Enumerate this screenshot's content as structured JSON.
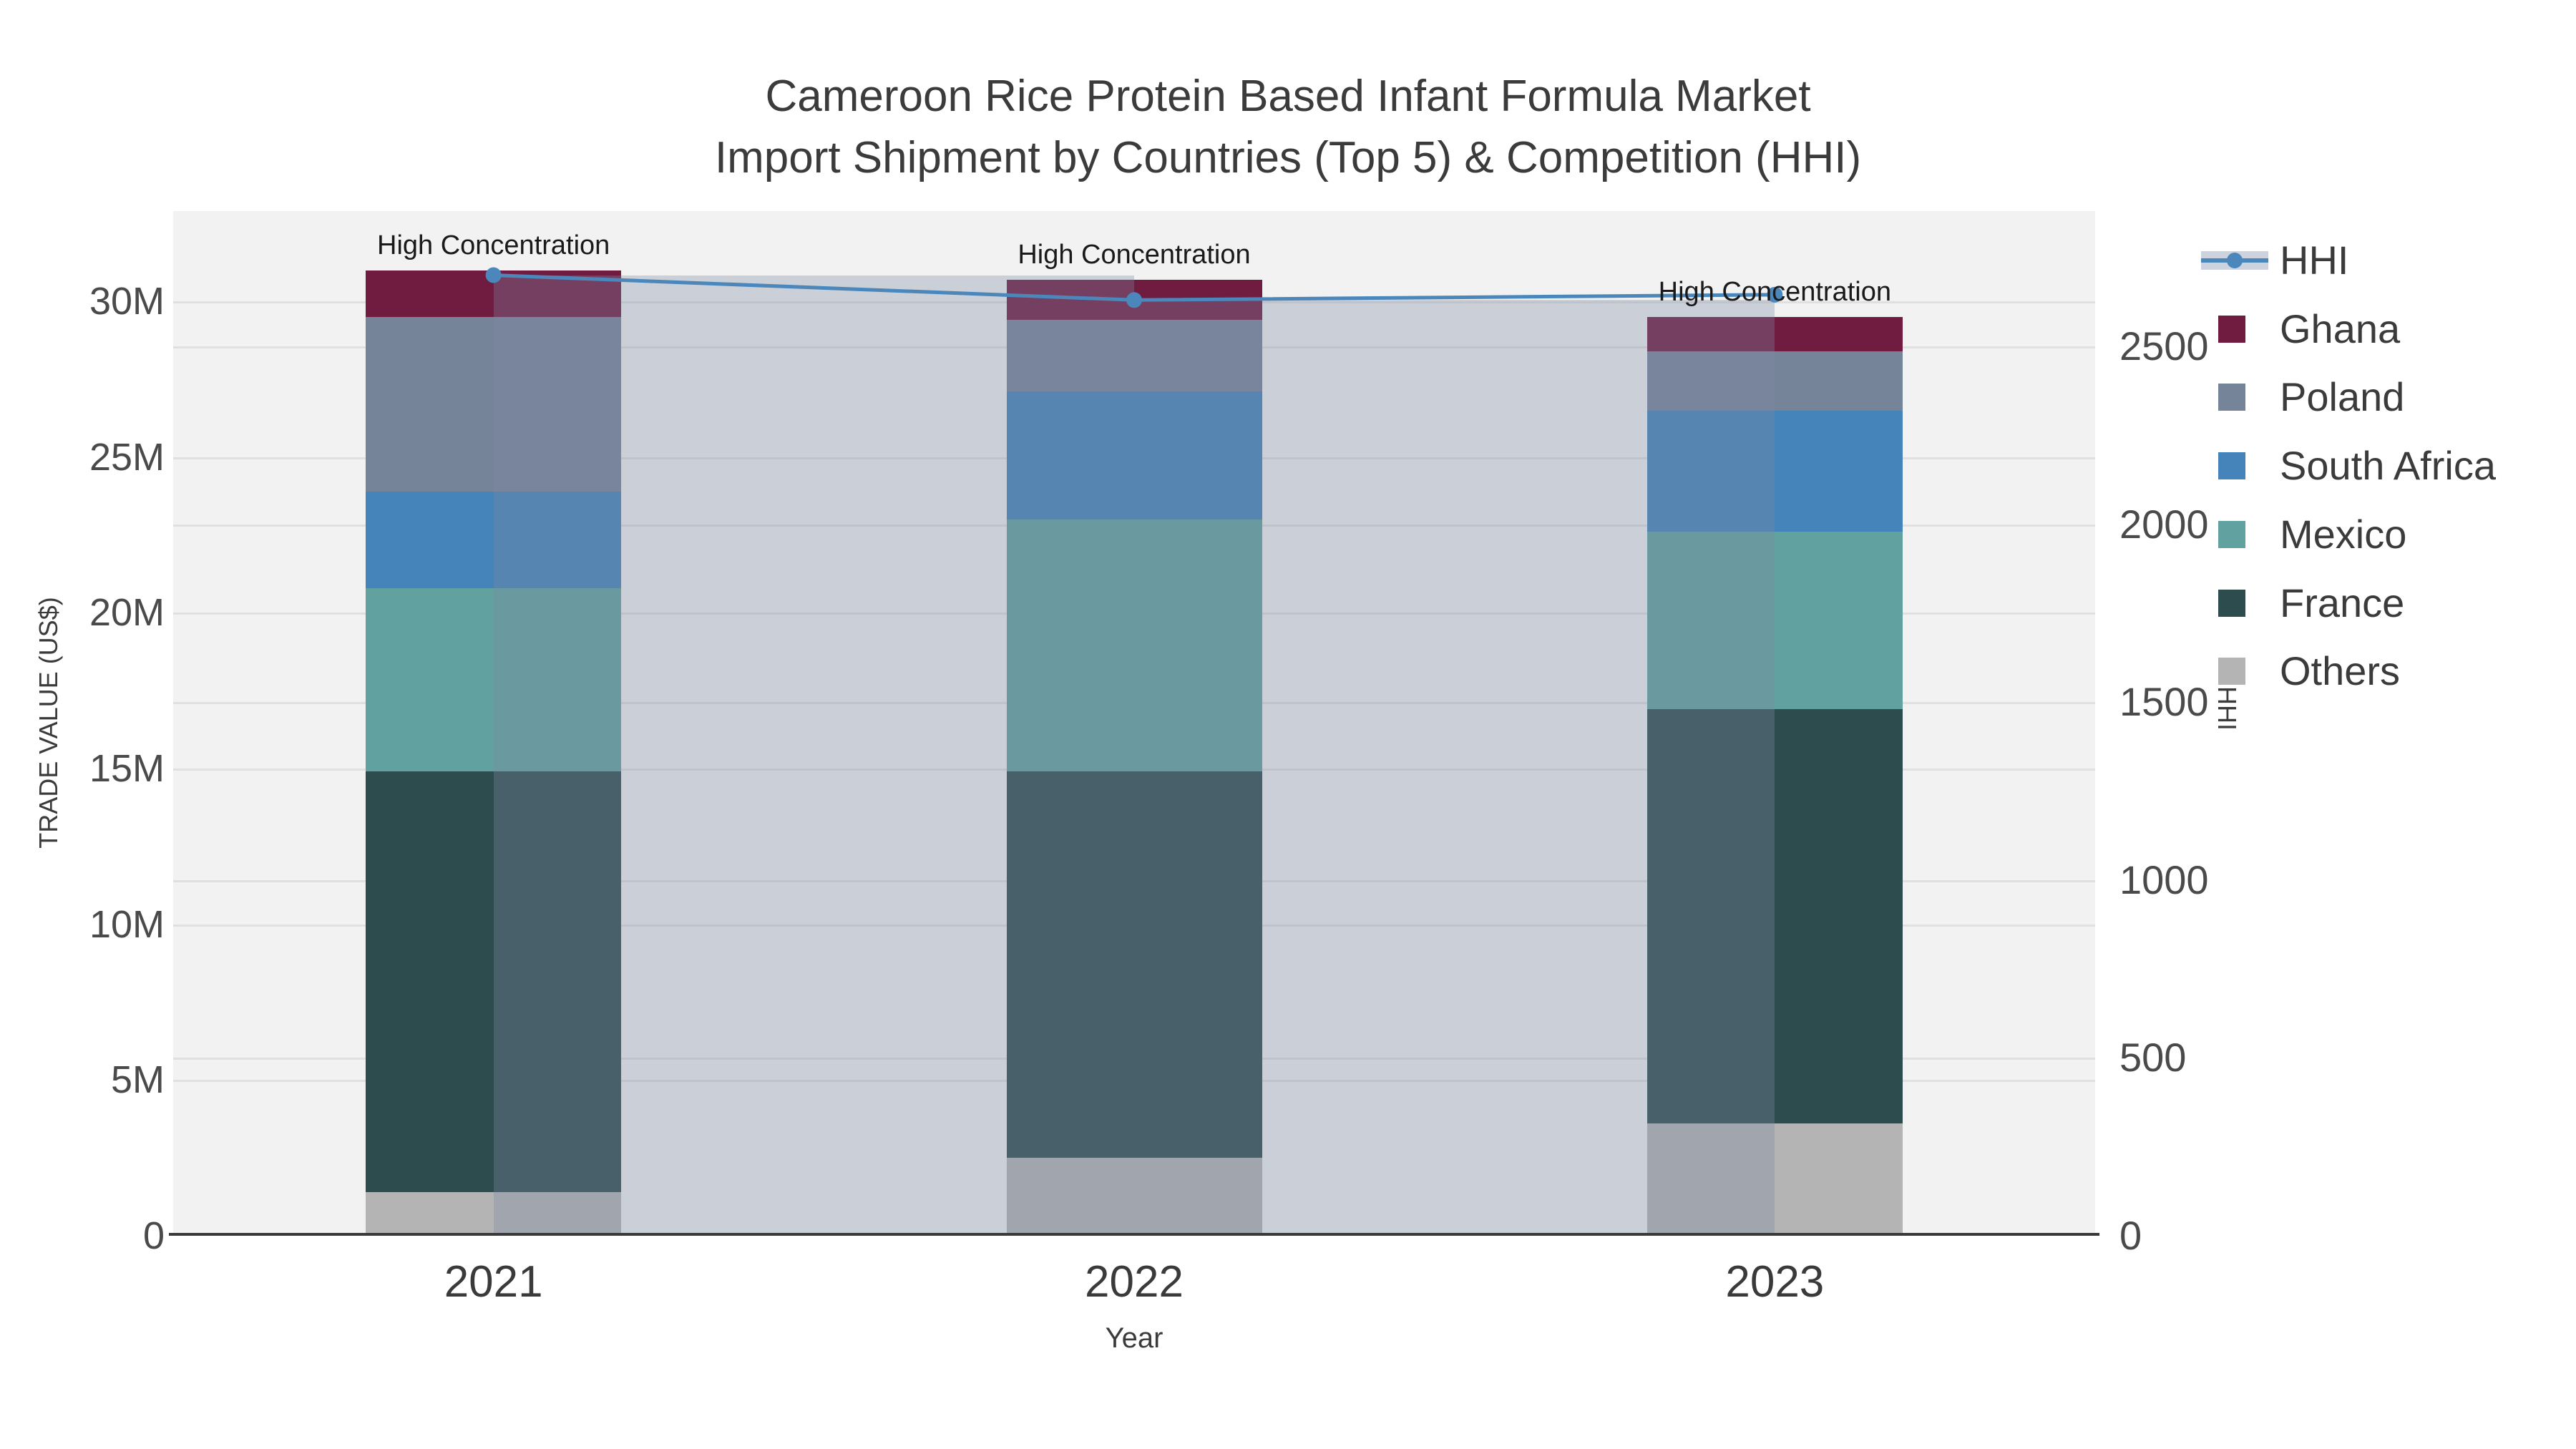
{
  "chart_data": {
    "type": "bar",
    "title_line1": "Cameroon Rice Protein Based Infant Formula Market",
    "title_line2": "Import Shipment by Countries (Top 5) & Competition (HHI)",
    "categories": [
      "2021",
      "2022",
      "2023"
    ],
    "stack_order_note": "series listed bottom-to-top of the stacked bars; values in million US$",
    "series": [
      {
        "name": "Others",
        "color": "#b4b4b4",
        "values": [
          1.4,
          2.5,
          3.6
        ]
      },
      {
        "name": "France",
        "color": "#2d4c4e",
        "values": [
          13.5,
          12.4,
          13.3
        ]
      },
      {
        "name": "Mexico",
        "color": "#61a2a0",
        "values": [
          5.9,
          8.1,
          5.7
        ]
      },
      {
        "name": "South Africa",
        "color": "#4583bb",
        "values": [
          3.1,
          4.1,
          3.9
        ]
      },
      {
        "name": "Poland",
        "color": "#76849a",
        "values": [
          5.6,
          2.3,
          1.9
        ]
      },
      {
        "name": "Ghana",
        "color": "#701b40",
        "values": [
          1.5,
          1.3,
          1.1
        ]
      }
    ],
    "hhi": {
      "name": "HHI",
      "line_color": "#4b87bb",
      "band_color": "#cdd3de",
      "values": [
        2700,
        2630,
        2645
      ]
    },
    "annotations": [
      "High Concentration",
      "High Concentration",
      "High Concentration"
    ],
    "y_left": {
      "label": "TRADE VALUE (US$)",
      "max": 32.9,
      "ticks": [
        {
          "v": 0,
          "label": "0"
        },
        {
          "v": 5,
          "label": "5M"
        },
        {
          "v": 10,
          "label": "10M"
        },
        {
          "v": 15,
          "label": "15M"
        },
        {
          "v": 20,
          "label": "20M"
        },
        {
          "v": 25,
          "label": "25M"
        },
        {
          "v": 30,
          "label": "30M"
        }
      ]
    },
    "y_right": {
      "label": "HHI",
      "max": 2880,
      "ticks": [
        {
          "v": 0,
          "label": "0"
        },
        {
          "v": 500,
          "label": "500"
        },
        {
          "v": 1000,
          "label": "1000"
        },
        {
          "v": 1500,
          "label": "1500"
        },
        {
          "v": 2000,
          "label": "2000"
        },
        {
          "v": 2500,
          "label": "2500"
        }
      ]
    },
    "x": {
      "label": "Year"
    },
    "legend_order": [
      "HHI",
      "Ghana",
      "Poland",
      "South Africa",
      "Mexico",
      "France",
      "Others"
    ],
    "colors": {
      "plot_background": "#f2f2f2",
      "gridline": "#e0e0e0",
      "axis_line": "#3a3a3a",
      "text": "#3b3b3b"
    }
  }
}
